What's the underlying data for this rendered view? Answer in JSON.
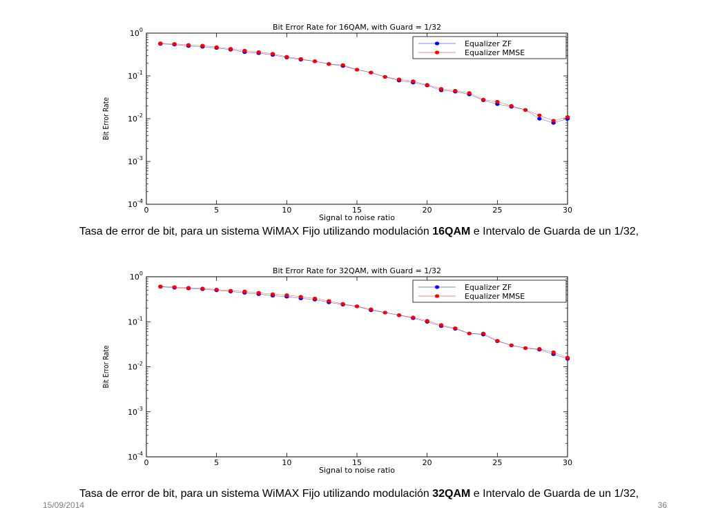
{
  "chart_data": [
    {
      "type": "line",
      "title": "Bit Error Rate for 16QAM, with Guard = 1/32",
      "xlabel": "Signal to noise ratio",
      "ylabel": "Bit Error Rate",
      "xlim": [
        0,
        30
      ],
      "ylim": [
        0.0001,
        1
      ],
      "yscale": "log",
      "xticks": [
        "0",
        "5",
        "10",
        "15",
        "20",
        "25",
        "30"
      ],
      "yticks": [
        {
          "base": "10",
          "exp": "0"
        },
        {
          "base": "10",
          "exp": "-1"
        },
        {
          "base": "10",
          "exp": "-2"
        },
        {
          "base": "10",
          "exp": "-3"
        },
        {
          "base": "10",
          "exp": "-4"
        }
      ],
      "legend_position": "top-right",
      "x": [
        1,
        2,
        3,
        4,
        5,
        6,
        7,
        8,
        9,
        10,
        11,
        12,
        13,
        14,
        15,
        16,
        17,
        18,
        19,
        20,
        21,
        22,
        23,
        24,
        25,
        26,
        27,
        28,
        29,
        30
      ],
      "series": [
        {
          "name": "Equalizer ZF",
          "color": "#0000ff",
          "values": [
            0.56,
            0.54,
            0.5,
            0.48,
            0.45,
            0.41,
            0.36,
            0.34,
            0.31,
            0.27,
            0.24,
            0.22,
            0.19,
            0.17,
            0.14,
            0.12,
            0.095,
            0.078,
            0.07,
            0.06,
            0.046,
            0.043,
            0.037,
            0.027,
            0.022,
            0.019,
            0.016,
            0.01,
            0.008,
            0.01
          ]
        },
        {
          "name": "Equalizer MMSE",
          "color": "#ff0000",
          "values": [
            0.58,
            0.56,
            0.53,
            0.51,
            0.47,
            0.43,
            0.39,
            0.36,
            0.33,
            0.28,
            0.25,
            0.22,
            0.19,
            0.18,
            0.14,
            0.12,
            0.095,
            0.083,
            0.075,
            0.062,
            0.05,
            0.045,
            0.04,
            0.028,
            0.025,
            0.02,
            0.016,
            0.012,
            0.009,
            0.011
          ]
        }
      ]
    },
    {
      "type": "line",
      "title": "Bit Error Rate for 32QAM, with Guard = 1/32",
      "xlabel": "Signal to noise ratio",
      "ylabel": "Bit Error Rate",
      "xlim": [
        0,
        30
      ],
      "ylim": [
        0.0001,
        1
      ],
      "yscale": "log",
      "xticks": [
        "0",
        "5",
        "10",
        "15",
        "20",
        "25",
        "30"
      ],
      "yticks": [
        {
          "base": "10",
          "exp": "0"
        },
        {
          "base": "10",
          "exp": "-1"
        },
        {
          "base": "10",
          "exp": "-2"
        },
        {
          "base": "10",
          "exp": "-3"
        },
        {
          "base": "10",
          "exp": "-4"
        }
      ],
      "legend_position": "top-right",
      "x": [
        1,
        2,
        3,
        4,
        5,
        6,
        7,
        8,
        9,
        10,
        11,
        12,
        13,
        14,
        15,
        16,
        17,
        18,
        19,
        20,
        21,
        22,
        23,
        24,
        25,
        26,
        27,
        28,
        29,
        30
      ],
      "series": [
        {
          "name": "Equalizer ZF",
          "color": "#0000ff",
          "values": [
            0.6,
            0.57,
            0.55,
            0.53,
            0.5,
            0.47,
            0.44,
            0.41,
            0.38,
            0.36,
            0.33,
            0.31,
            0.27,
            0.24,
            0.22,
            0.18,
            0.16,
            0.14,
            0.12,
            0.1,
            0.08,
            0.07,
            0.055,
            0.052,
            0.037,
            0.03,
            0.026,
            0.024,
            0.019,
            0.015
          ]
        },
        {
          "name": "Equalizer MMSE",
          "color": "#ff0000",
          "values": [
            0.61,
            0.59,
            0.57,
            0.55,
            0.52,
            0.49,
            0.47,
            0.44,
            0.41,
            0.39,
            0.36,
            0.33,
            0.29,
            0.25,
            0.22,
            0.19,
            0.16,
            0.14,
            0.125,
            0.105,
            0.085,
            0.072,
            0.055,
            0.055,
            0.038,
            0.03,
            0.026,
            0.025,
            0.021,
            0.016
          ]
        }
      ]
    }
  ],
  "captions": [
    {
      "before": "Tasa de error de bit, para un sistema WiMAX Fijo utilizando modulación ",
      "bold": "16QAM",
      "after": " e Intervalo de Guarda de un 1/32,"
    },
    {
      "before": "Tasa de error de bit, para un sistema WiMAX Fijo utilizando modulación ",
      "bold": "32QAM",
      "after": " e Intervalo de Guarda de un 1/32,"
    }
  ],
  "footer": {
    "date": "15/09/2014",
    "page": "36"
  }
}
